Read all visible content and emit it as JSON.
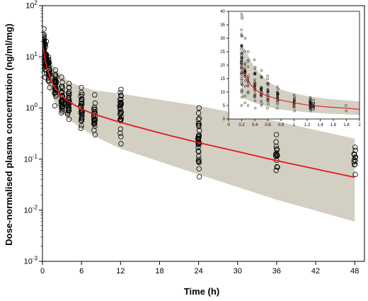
{
  "chart_data": [
    {
      "type": "scatter",
      "title": "",
      "xlabel": "Time (h)",
      "ylabel": "Dose-normalised plasma concentration (ng/ml/mg)",
      "x_scale": "linear",
      "y_scale": "log",
      "xlim": [
        0,
        49.5
      ],
      "ylim": [
        0.001,
        100
      ],
      "x_ticks": [
        0,
        6,
        12,
        18,
        24,
        30,
        36,
        42,
        48
      ],
      "x_tick_labels": [
        "0",
        "6",
        "12",
        "18",
        "24",
        "30",
        "36",
        "42",
        "48"
      ],
      "y_ticks": [
        0.001,
        0.01,
        0.1,
        1,
        10,
        100
      ],
      "grid": false,
      "colors": {
        "median_line": "#e31a1c",
        "band": "#d4cfc3",
        "points": "#000000"
      },
      "series": [
        {
          "kind": "prediction-median-line",
          "x": [
            0.05,
            0.1,
            0.2,
            0.3,
            0.5,
            0.75,
            1,
            1.5,
            2,
            3,
            4,
            6,
            8,
            12,
            16,
            20,
            24,
            30,
            36,
            42,
            48
          ],
          "y": [
            18,
            15.5,
            13,
            10.5,
            7.8,
            5.8,
            4.6,
            3.1,
            2.4,
            1.7,
            1.35,
            0.95,
            0.75,
            0.52,
            0.38,
            0.28,
            0.21,
            0.14,
            0.093,
            0.064,
            0.044
          ]
        },
        {
          "kind": "prediction-interval-band",
          "x": [
            0.05,
            0.5,
            1,
            2,
            4,
            6,
            8,
            12,
            24,
            36,
            48
          ],
          "lower": [
            9,
            4,
            2.5,
            1.2,
            0.6,
            0.4,
            0.28,
            0.16,
            0.05,
            0.016,
            0.006
          ],
          "upper": [
            35,
            18,
            10,
            5.8,
            3.3,
            2.6,
            2.2,
            1.9,
            1.1,
            0.55,
            0.25
          ]
        },
        {
          "kind": "observed-groups",
          "groups": [
            {
              "x": 0.15,
              "min": 6,
              "max": 35,
              "n": 40
            },
            {
              "x": 0.5,
              "min": 4,
              "max": 20,
              "n": 32
            },
            {
              "x": 1,
              "min": 2.5,
              "max": 10,
              "n": 28
            },
            {
              "x": 2,
              "min": 1.1,
              "max": 5.5,
              "n": 36
            },
            {
              "x": 3,
              "min": 0.8,
              "max": 4,
              "n": 30
            },
            {
              "x": 4,
              "min": 0.6,
              "max": 3,
              "n": 28
            },
            {
              "x": 6,
              "min": 0.4,
              "max": 2.5,
              "n": 30
            },
            {
              "x": 8,
              "min": 0.3,
              "max": 1.8,
              "n": 26
            },
            {
              "x": 12,
              "min": 0.2,
              "max": 2.3,
              "n": 30
            },
            {
              "x": 24,
              "min": 0.045,
              "max": 1,
              "n": 36
            },
            {
              "x": 36,
              "min": 0.06,
              "max": 0.3,
              "n": 16
            },
            {
              "x": 48,
              "min": 0.05,
              "max": 0.17,
              "n": 12
            }
          ]
        }
      ]
    },
    {
      "type": "scatter",
      "title": "",
      "xlabel": "",
      "ylabel": "",
      "x_scale": "linear",
      "y_scale": "linear",
      "xlim": [
        0,
        2
      ],
      "ylim": [
        0,
        40
      ],
      "x_ticks": [
        0,
        0.2,
        0.4,
        0.6,
        0.8,
        1,
        1.2,
        1.4,
        1.6,
        1.8,
        2
      ],
      "x_tick_labels": [
        "0",
        "0.2",
        "0.4",
        "0.6",
        "0.8",
        "1",
        "1.2",
        "1.4",
        "1.6",
        "1.8",
        "2"
      ],
      "y_ticks": [
        0,
        5,
        10,
        15,
        20,
        25,
        30,
        35,
        40
      ],
      "grid": false,
      "series": [
        {
          "kind": "prediction-median-line",
          "x": [
            0.2,
            0.3,
            0.4,
            0.5,
            0.6,
            0.8,
            1,
            1.2,
            1.5,
            1.8,
            2
          ],
          "y": [
            18,
            14,
            11,
            9.5,
            8.5,
            7,
            6,
            5.2,
            4.5,
            4,
            3.6
          ]
        },
        {
          "kind": "prediction-interval-band",
          "x": [
            0.2,
            0.4,
            0.6,
            0.8,
            1,
            1.2,
            1.5,
            2
          ],
          "lower": [
            8,
            6,
            4.5,
            3.5,
            3,
            2.5,
            2,
            1.5
          ],
          "upper": [
            28,
            19,
            14,
            11,
            9.5,
            8.5,
            7.5,
            6.5
          ]
        },
        {
          "kind": "observed-groups",
          "groups": [
            {
              "x": 0.2,
              "min": 5,
              "max": 39,
              "n": 50
            },
            {
              "x": 0.25,
              "min": 6,
              "max": 30,
              "n": 20
            },
            {
              "x": 0.3,
              "min": 5,
              "max": 25,
              "n": 15
            },
            {
              "x": 0.4,
              "min": 4,
              "max": 22,
              "n": 28
            },
            {
              "x": 0.5,
              "min": 5,
              "max": 18,
              "n": 22
            },
            {
              "x": 0.6,
              "min": 4,
              "max": 16,
              "n": 22
            },
            {
              "x": 0.75,
              "min": 4,
              "max": 12,
              "n": 22
            },
            {
              "x": 1,
              "min": 3,
              "max": 9,
              "n": 15
            },
            {
              "x": 1.25,
              "min": 3,
              "max": 8,
              "n": 28
            },
            {
              "x": 1.3,
              "min": 3.5,
              "max": 7,
              "n": 10
            },
            {
              "x": 1.8,
              "min": 3,
              "max": 5,
              "n": 2
            }
          ]
        }
      ]
    }
  ]
}
